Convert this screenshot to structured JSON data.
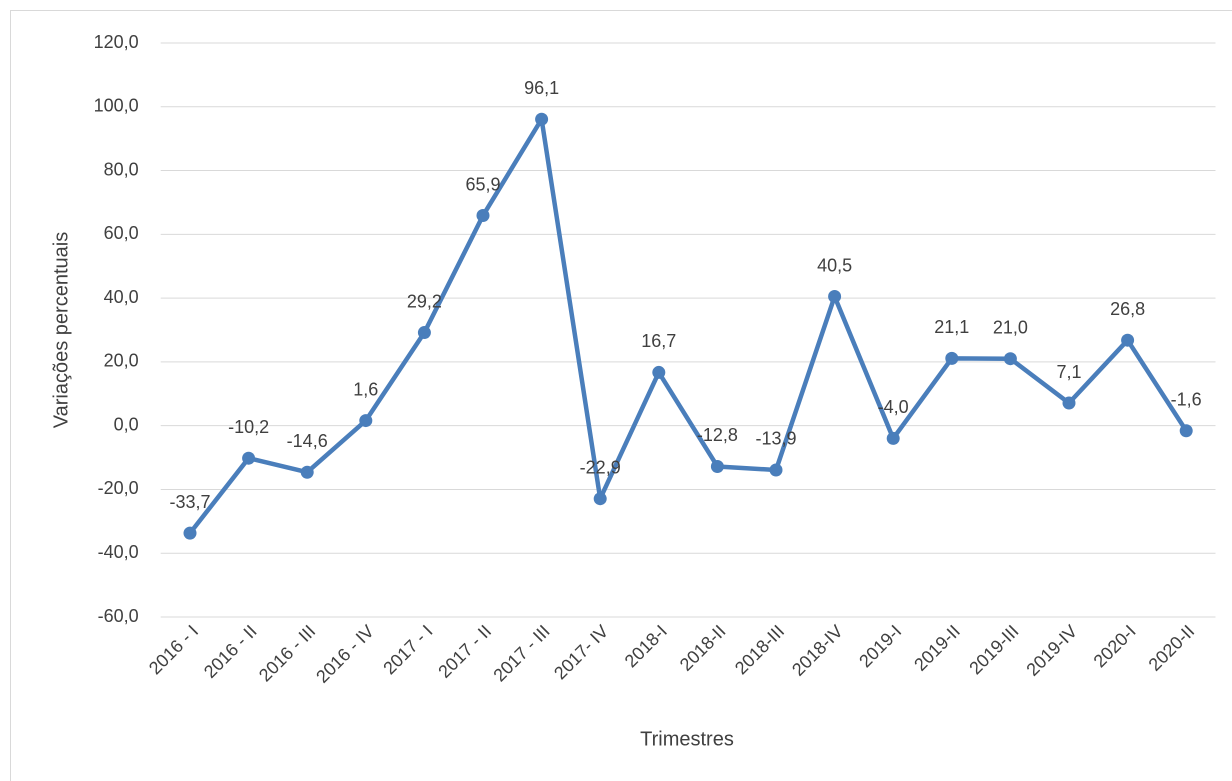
{
  "chart_data": {
    "type": "line",
    "xlabel": "Trimestres",
    "ylabel": "Variações  percentuais",
    "categories": [
      "2016 - I",
      "2016 - II",
      "2016 - III",
      "2016 - IV",
      "2017 - I",
      "2017 - II",
      "2017 - III",
      "2017- IV",
      "2018-I",
      "2018-II",
      "2018-III",
      "2018-IV",
      "2019-I",
      "2019-II",
      "2019-III",
      "2019-IV",
      "2020-I",
      "2020-II"
    ],
    "series": [
      {
        "color": "#4a7ebb",
        "values": [
          -33.7,
          -10.2,
          -14.6,
          1.6,
          29.2,
          65.9,
          96.1,
          -22.9,
          16.7,
          -12.8,
          -13.9,
          40.5,
          -4.0,
          21.1,
          21.0,
          7.1,
          26.8,
          -1.6
        ],
        "value_labels": [
          "-33,7",
          "-10,2",
          "-14,6",
          "1,6",
          "29,2",
          "65,9",
          "96,1",
          "-22,9",
          "16,7",
          "-12,8",
          "-13,9",
          "40,5",
          "-4,0",
          "21,1",
          "21,0",
          "7,1",
          "26,8",
          "-1,6"
        ]
      }
    ],
    "ylim": [
      -60,
      120
    ],
    "yticks": [
      {
        "value": -60,
        "label": "-60,0"
      },
      {
        "value": -40,
        "label": "-40,0"
      },
      {
        "value": -20,
        "label": "-20,0"
      },
      {
        "value": 0,
        "label": "0,0"
      },
      {
        "value": 20,
        "label": "20,0"
      },
      {
        "value": 40,
        "label": "40,0"
      },
      {
        "value": 60,
        "label": "60,0"
      },
      {
        "value": 80,
        "label": "80,0"
      },
      {
        "value": 100,
        "label": "100,0"
      },
      {
        "value": 120,
        "label": "120,0"
      }
    ],
    "grid": true
  }
}
